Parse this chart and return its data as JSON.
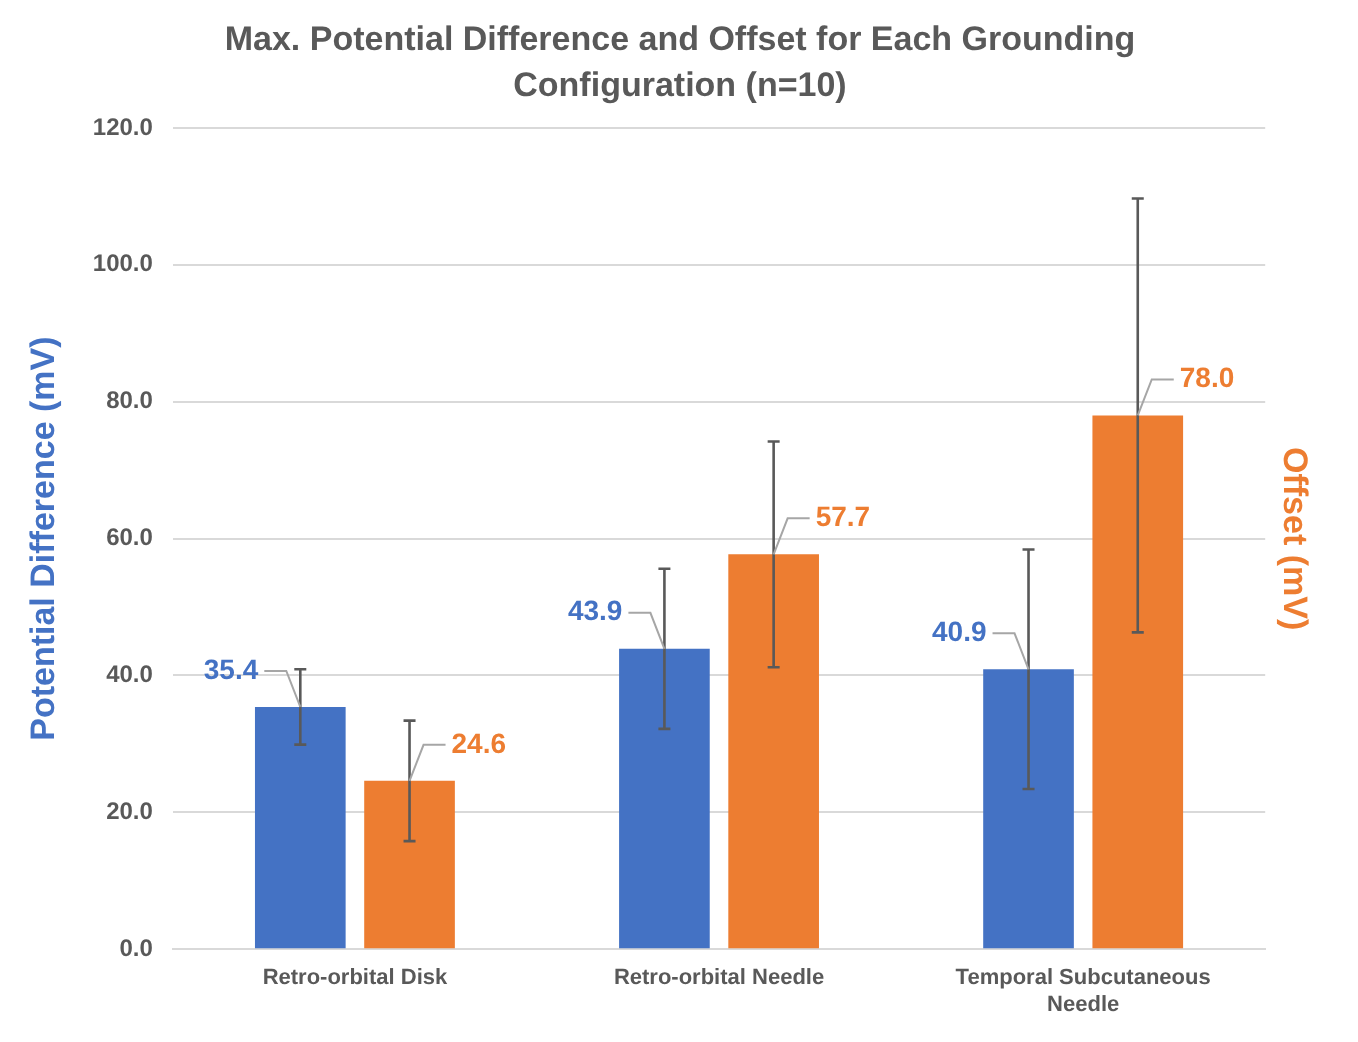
{
  "chart_data": {
    "type": "bar",
    "title": "Max. Potential Difference and Offset for Each Grounding Configuration (n=10)",
    "ylabel": "Potential Difference (mV)",
    "y2label": "Offset (mV)",
    "categories": [
      "Retro-orbital Disk",
      "Retro-orbital Needle",
      "Temporal Subcutaneous Needle"
    ],
    "series": [
      {
        "color": "#4472c4",
        "values": [
          35.4,
          43.9,
          40.9
        ],
        "errors": [
          5.5,
          11.7,
          17.5
        ],
        "value_labels": [
          "35.4",
          "43.9",
          "40.9"
        ]
      },
      {
        "color": "#ed7d31",
        "values": [
          24.6,
          57.7,
          78.0
        ],
        "errors": [
          8.8,
          16.5,
          31.7
        ],
        "value_labels": [
          "24.6",
          "57.7",
          "78.0"
        ]
      }
    ],
    "ylim": [
      0,
      120
    ],
    "yticks": [
      {
        "value": 0,
        "label": "0.0"
      },
      {
        "value": 20,
        "label": "20.0"
      },
      {
        "value": 40,
        "label": "40.0"
      },
      {
        "value": 60,
        "label": "60.0"
      },
      {
        "value": 80,
        "label": "80.0"
      },
      {
        "value": 100,
        "label": "100.0"
      },
      {
        "value": 120,
        "label": "120.0"
      }
    ],
    "grid": "y",
    "legend": false
  }
}
